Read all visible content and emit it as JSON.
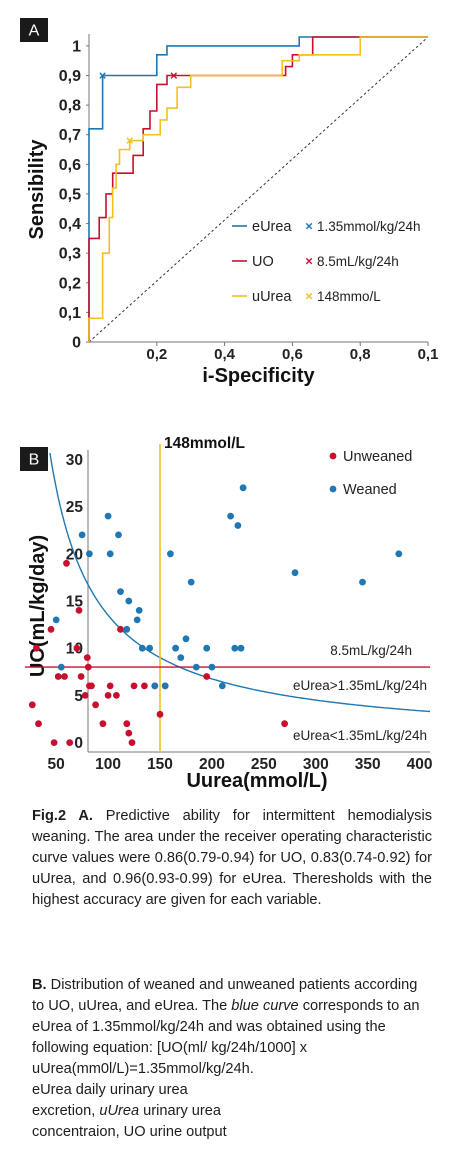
{
  "charts": [
    {
      "panel": "A",
      "type": "line",
      "xlabel": "i-Specificity",
      "ylabel": "Sensibility",
      "xlim": [
        0,
        1
      ],
      "ylim": [
        0,
        1
      ],
      "x_ticks": [
        "0,2",
        "0,4",
        "0,6",
        "0,8",
        "0,1"
      ],
      "y_ticks": [
        "0",
        "0,1",
        "0,2",
        "0,3",
        "0,4",
        "0,5",
        "0,6",
        "0,7",
        "0,8",
        "0,9",
        "1"
      ],
      "series": [
        {
          "name": "eUrea",
          "color": "#1f77b4",
          "threshold": "1.35mmol/kg/24h",
          "threshold_point": [
            0.04,
            0.9
          ],
          "points": [
            [
              0,
              0
            ],
            [
              0,
              0.72
            ],
            [
              0.04,
              0.72
            ],
            [
              0.04,
              0.9
            ],
            [
              0.2,
              0.9
            ],
            [
              0.2,
              0.97
            ],
            [
              0.23,
              0.97
            ],
            [
              0.23,
              1
            ],
            [
              0.62,
              1
            ],
            [
              0.62,
              1.03
            ],
            [
              1,
              1.03
            ]
          ]
        },
        {
          "name": "UO",
          "color": "#c8102e",
          "threshold": "8.5mL/kg/24h",
          "threshold_point": [
            0.25,
            0.9
          ],
          "points": [
            [
              0,
              0
            ],
            [
              0,
              0.35
            ],
            [
              0.03,
              0.35
            ],
            [
              0.03,
              0.42
            ],
            [
              0.05,
              0.42
            ],
            [
              0.05,
              0.5
            ],
            [
              0.07,
              0.5
            ],
            [
              0.07,
              0.57
            ],
            [
              0.13,
              0.57
            ],
            [
              0.13,
              0.63
            ],
            [
              0.16,
              0.63
            ],
            [
              0.16,
              0.72
            ],
            [
              0.18,
              0.72
            ],
            [
              0.18,
              0.78
            ],
            [
              0.2,
              0.78
            ],
            [
              0.2,
              0.87
            ],
            [
              0.23,
              0.87
            ],
            [
              0.23,
              0.9
            ],
            [
              0.58,
              0.9
            ],
            [
              0.58,
              0.93
            ],
            [
              0.6,
              0.93
            ],
            [
              0.6,
              0.97
            ],
            [
              0.66,
              0.97
            ],
            [
              0.66,
              1.03
            ],
            [
              1,
              1.03
            ]
          ]
        },
        {
          "name": "uUrea",
          "color": "#f2c11b",
          "threshold": "148mmo/L",
          "threshold_point": [
            0.12,
            0.68
          ],
          "points": [
            [
              0,
              0
            ],
            [
              0,
              0.08
            ],
            [
              0.04,
              0.08
            ],
            [
              0.04,
              0.3
            ],
            [
              0.06,
              0.3
            ],
            [
              0.06,
              0.42
            ],
            [
              0.07,
              0.42
            ],
            [
              0.07,
              0.52
            ],
            [
              0.08,
              0.52
            ],
            [
              0.08,
              0.6
            ],
            [
              0.09,
              0.6
            ],
            [
              0.09,
              0.65
            ],
            [
              0.12,
              0.65
            ],
            [
              0.12,
              0.68
            ],
            [
              0.16,
              0.68
            ],
            [
              0.16,
              0.7
            ],
            [
              0.21,
              0.7
            ],
            [
              0.21,
              0.75
            ],
            [
              0.23,
              0.75
            ],
            [
              0.23,
              0.79
            ],
            [
              0.26,
              0.79
            ],
            [
              0.26,
              0.86
            ],
            [
              0.3,
              0.86
            ],
            [
              0.3,
              0.9
            ],
            [
              0.57,
              0.9
            ],
            [
              0.57,
              0.95
            ],
            [
              0.62,
              0.95
            ],
            [
              0.62,
              0.97
            ],
            [
              0.8,
              0.97
            ],
            [
              0.8,
              1.03
            ],
            [
              1,
              1.03
            ]
          ]
        }
      ],
      "diagonal": true,
      "legend_position": "bottom-right"
    },
    {
      "panel": "B",
      "type": "scatter",
      "xlabel": "Uurea(mmol/L)",
      "ylabel": "UO(mL/kg/day)",
      "xlim": [
        20,
        410
      ],
      "ylim": [
        -1,
        31
      ],
      "x_ticks": [
        50,
        100,
        150,
        200,
        250,
        300,
        350,
        400
      ],
      "y_ticks": [
        0,
        5,
        10,
        15,
        20,
        25,
        30
      ],
      "vline": {
        "x": 150,
        "label": "148mmol/L",
        "color": "#f2c11b"
      },
      "hline": {
        "y": 8,
        "label": "8.5mL/kg/24h",
        "color": "#c8102e"
      },
      "curve": {
        "k": 1350,
        "color": "#1f77b4",
        "label_above": "eUrea>1.35mL/kg/24h",
        "label_below": "eUrea<1.35mL/kg/24h"
      },
      "series": [
        {
          "name": "Unweaned",
          "color": "#c8102e",
          "points": [
            [
              27,
              4
            ],
            [
              31,
              10
            ],
            [
              33,
              2
            ],
            [
              45,
              12
            ],
            [
              48,
              0
            ],
            [
              52,
              7
            ],
            [
              58,
              7
            ],
            [
              60,
              19
            ],
            [
              63,
              0
            ],
            [
              70,
              10
            ],
            [
              72,
              14
            ],
            [
              74,
              7
            ],
            [
              78,
              5
            ],
            [
              80,
              9
            ],
            [
              81,
              8
            ],
            [
              82,
              6
            ],
            [
              84,
              6
            ],
            [
              88,
              4
            ],
            [
              95,
              2
            ],
            [
              100,
              5
            ],
            [
              102,
              6
            ],
            [
              108,
              5
            ],
            [
              112,
              12
            ],
            [
              118,
              2
            ],
            [
              120,
              1
            ],
            [
              123,
              0
            ],
            [
              125,
              6
            ],
            [
              135,
              6
            ],
            [
              145,
              6
            ],
            [
              150,
              3
            ],
            [
              155,
              6
            ],
            [
              195,
              7
            ],
            [
              270,
              2
            ]
          ]
        },
        {
          "name": "Weaned",
          "color": "#1f77b4",
          "points": [
            [
              50,
              13
            ],
            [
              55,
              8
            ],
            [
              75,
              22
            ],
            [
              82,
              20
            ],
            [
              100,
              24
            ],
            [
              102,
              20
            ],
            [
              110,
              22
            ],
            [
              112,
              16
            ],
            [
              118,
              12
            ],
            [
              120,
              15
            ],
            [
              128,
              13
            ],
            [
              130,
              14
            ],
            [
              133,
              10
            ],
            [
              140,
              10
            ],
            [
              145,
              6
            ],
            [
              155,
              6
            ],
            [
              160,
              20
            ],
            [
              165,
              10
            ],
            [
              170,
              9
            ],
            [
              175,
              11
            ],
            [
              180,
              17
            ],
            [
              185,
              8
            ],
            [
              195,
              10
            ],
            [
              200,
              8
            ],
            [
              210,
              6
            ],
            [
              218,
              24
            ],
            [
              222,
              10
            ],
            [
              225,
              23
            ],
            [
              228,
              10
            ],
            [
              230,
              27
            ],
            [
              280,
              18
            ],
            [
              345,
              17
            ],
            [
              380,
              20
            ]
          ]
        }
      ],
      "legend_position": "top-right"
    }
  ],
  "panels": {
    "a": {
      "letter": "A",
      "legend": [
        {
          "name": "eUrea",
          "threshold": "1.35mmol/kg/24h"
        },
        {
          "name": "UO",
          "threshold": "8.5mL/kg/24h"
        },
        {
          "name": "uUrea",
          "threshold": "148mmo/L"
        }
      ]
    },
    "b": {
      "letter": "B",
      "legend": [
        "Unweaned",
        "Weaned"
      ]
    }
  },
  "caption": {
    "a_label": "Fig.2 A.",
    "a_text": " Predictive ability for intermittent hemodialysis weaning. The area under the receiver operating characteristic curve values were 0.86(0.79-0.94) for UO, 0.83(0.74-0.92) for uUrea, and 0.96(0.93-0.99) for eUrea. Theresholds with the highest accuracy are given for each variable.",
    "b_label": "B.",
    "b_text1": " Distribution of weaned and unweaned patients according to UO, uUrea, and eUrea. The ",
    "b_italic1": "blue curve",
    "b_text2": " corresponds to an eUrea of 1.35mmol/kg/24h and was obtained using the following equation: [UO(ml/ kg/24h/1000] x uUrea(mm0l/L)=1.35mmol/kg/24h.",
    "b_text3": "eUrea daily urinary urea excretion, ",
    "b_italic2": "uUrea",
    "b_text4": " urinary urea concentraion, UO urine output"
  }
}
